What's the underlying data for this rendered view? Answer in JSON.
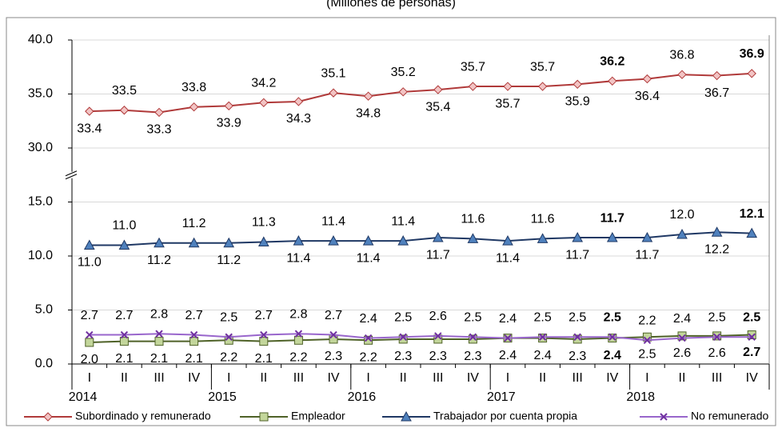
{
  "chart_data": {
    "type": "line",
    "subtitle": "(Millones de personas)",
    "categories": [
      "I",
      "II",
      "III",
      "IV",
      "I",
      "II",
      "III",
      "IV",
      "I",
      "II",
      "III",
      "IV",
      "I",
      "II",
      "III",
      "IV",
      "I",
      "II",
      "III",
      "IV"
    ],
    "years": [
      "2014",
      "2015",
      "2016",
      "2017",
      "2018"
    ],
    "ylim": [
      0,
      40
    ],
    "yticks": [
      {
        "value": 0,
        "label": "0.0"
      },
      {
        "value": 5,
        "label": "5.0"
      },
      {
        "value": 10,
        "label": "10.0"
      },
      {
        "value": 15,
        "label": "15.0"
      },
      {
        "value": 30,
        "label": "30.0"
      },
      {
        "value": 35,
        "label": "35.0"
      },
      {
        "value": 40,
        "label": "40.0"
      }
    ],
    "grid": true,
    "bold_points": [
      15,
      19
    ],
    "series": [
      {
        "name": "Subordinado y remunerado",
        "color": "#b03a3a",
        "marker_fill": "#f2c4c4",
        "marker": "diamond",
        "label_position": "alternate",
        "values": [
          33.4,
          33.5,
          33.3,
          33.8,
          33.9,
          34.2,
          34.3,
          35.1,
          34.8,
          35.2,
          35.4,
          35.7,
          35.7,
          35.7,
          35.9,
          36.2,
          36.4,
          36.8,
          36.7,
          36.9
        ],
        "value_labels": [
          "33.4",
          "33.5",
          "33.3",
          "33.8",
          "33.9",
          "34.2",
          "34.3",
          "35.1",
          "34.8",
          "35.2",
          "35.4",
          "35.7",
          "35.7",
          "35.7",
          "35.9",
          "36.2",
          "36.4",
          "36.8",
          "36.7",
          "36.9"
        ]
      },
      {
        "name": "Empleador",
        "color": "#4f6228",
        "marker_fill": "#c3d69b",
        "marker": "square",
        "label_position": "below",
        "values": [
          2.0,
          2.1,
          2.1,
          2.1,
          2.2,
          2.1,
          2.2,
          2.3,
          2.2,
          2.3,
          2.3,
          2.3,
          2.4,
          2.4,
          2.3,
          2.4,
          2.5,
          2.6,
          2.6,
          2.7
        ],
        "value_labels": [
          "2.0",
          "2.1",
          "2.1",
          "2.1",
          "2.2",
          "2.1",
          "2.2",
          "2.3",
          "2.2",
          "2.3",
          "2.3",
          "2.3",
          "2.4",
          "2.4",
          "2.3",
          "2.4",
          "2.5",
          "2.6",
          "2.6",
          "2.7"
        ]
      },
      {
        "name": "Trabajador por cuenta propia",
        "color": "#1f3864",
        "marker_fill": "#4f81bd",
        "marker": "triangle",
        "label_position": "alternate",
        "values": [
          11.0,
          11.0,
          11.2,
          11.2,
          11.2,
          11.3,
          11.4,
          11.4,
          11.4,
          11.4,
          11.7,
          11.6,
          11.4,
          11.6,
          11.7,
          11.7,
          11.7,
          12.0,
          12.2,
          12.1
        ],
        "value_labels": [
          "11.0",
          "11.0",
          "11.2",
          "11.2",
          "11.2",
          "11.3",
          "11.4",
          "11.4",
          "11.4",
          "11.4",
          "11.7",
          "11.6",
          "11.4",
          "11.6",
          "11.7",
          "11.7",
          "11.7",
          "12.0",
          "12.2",
          "12.1"
        ]
      },
      {
        "name": "No remunerado",
        "color": "#9966cc",
        "marker_fill": "#7030a0",
        "marker": "x",
        "label_position": "above",
        "values": [
          2.7,
          2.7,
          2.8,
          2.7,
          2.5,
          2.7,
          2.8,
          2.7,
          2.4,
          2.5,
          2.6,
          2.5,
          2.4,
          2.5,
          2.5,
          2.5,
          2.2,
          2.4,
          2.5,
          2.5
        ],
        "value_labels": [
          "2.7",
          "2.7",
          "2.8",
          "2.7",
          "2.5",
          "2.7",
          "2.8",
          "2.7",
          "2.4",
          "2.5",
          "2.6",
          "2.5",
          "2.4",
          "2.5",
          "2.5",
          "2.5",
          "2.2",
          "2.4",
          "2.5",
          "2.5"
        ]
      }
    ]
  }
}
